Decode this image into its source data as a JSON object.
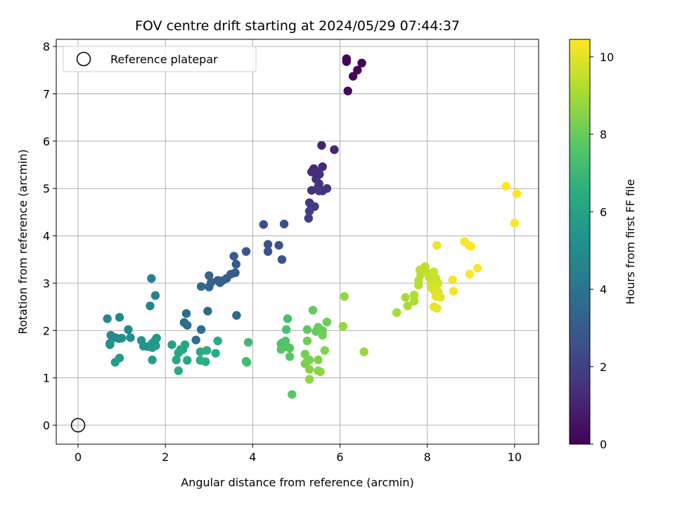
{
  "chart_data": {
    "type": "scatter",
    "title": "FOV centre drift starting at 2024/05/29 07:44:37",
    "xlabel": "Angular distance from reference (arcmin)",
    "ylabel": "Rotation from reference (arcmin)",
    "xlim": [
      -0.5,
      10.55
    ],
    "ylim": [
      -0.4,
      8.15
    ],
    "xticks": [
      0,
      2,
      4,
      6,
      8,
      10
    ],
    "yticks": [
      0,
      1,
      2,
      3,
      4,
      5,
      6,
      7,
      8
    ],
    "grid": true,
    "legend": {
      "position": "top-left",
      "entries": [
        {
          "label": "Reference platepar",
          "marker": "open-circle"
        }
      ]
    },
    "reference_point": {
      "x": 0,
      "y": 0
    },
    "colorbar": {
      "label": "Hours from first FF file",
      "colormap": "viridis",
      "range": [
        0,
        10.45
      ],
      "ticks": [
        0,
        2,
        4,
        6,
        8,
        10
      ]
    },
    "series": [
      {
        "points": [
          [
            6.15,
            7.74,
            0.0
          ],
          [
            6.15,
            7.68,
            0.05
          ],
          [
            6.5,
            7.65,
            0.1
          ],
          [
            6.4,
            7.5,
            0.15
          ],
          [
            6.3,
            7.37,
            0.2
          ],
          [
            6.18,
            7.06,
            0.25
          ],
          [
            5.58,
            5.91,
            1.05
          ],
          [
            5.87,
            5.82,
            1.1
          ],
          [
            5.4,
            5.42,
            1.15
          ],
          [
            5.6,
            5.46,
            1.2
          ],
          [
            5.35,
            5.35,
            1.25
          ],
          [
            5.53,
            5.3,
            1.3
          ],
          [
            5.47,
            5.35,
            1.35
          ],
          [
            5.45,
            5.2,
            1.4
          ],
          [
            5.52,
            5.1,
            1.45
          ],
          [
            5.5,
            5.03,
            1.5
          ],
          [
            5.35,
            4.96,
            1.55
          ],
          [
            5.7,
            5.0,
            1.6
          ],
          [
            5.6,
            4.95,
            1.65
          ],
          [
            5.52,
            4.95,
            1.7
          ],
          [
            5.3,
            4.7,
            1.75
          ],
          [
            5.35,
            4.6,
            1.8
          ],
          [
            5.42,
            4.62,
            1.85
          ],
          [
            5.3,
            4.52,
            1.9
          ],
          [
            5.28,
            4.37,
            1.95
          ],
          [
            4.25,
            4.24,
            2.5
          ],
          [
            4.72,
            4.25,
            2.55
          ],
          [
            4.35,
            3.82,
            2.6
          ],
          [
            4.6,
            3.8,
            2.65
          ],
          [
            4.35,
            3.67,
            2.7
          ],
          [
            4.67,
            3.5,
            2.75
          ],
          [
            3.85,
            3.67,
            2.85
          ],
          [
            3.57,
            3.57,
            2.9
          ],
          [
            3.62,
            3.4,
            2.95
          ],
          [
            3.6,
            3.22,
            3.0
          ],
          [
            3.5,
            3.19,
            3.05
          ],
          [
            3.4,
            3.1,
            3.1
          ],
          [
            3.3,
            3.05,
            3.15
          ],
          [
            3.2,
            3.06,
            3.2
          ],
          [
            3.25,
            3.01,
            3.25
          ],
          [
            3.0,
            3.16,
            3.3
          ],
          [
            3.05,
            3.02,
            3.35
          ],
          [
            3.0,
            2.92,
            3.4
          ],
          [
            2.82,
            2.93,
            3.45
          ],
          [
            3.63,
            2.32,
            3.5
          ],
          [
            2.97,
            2.41,
            3.55
          ],
          [
            2.48,
            2.36,
            3.6
          ],
          [
            2.43,
            2.17,
            3.65
          ],
          [
            2.5,
            2.11,
            3.7
          ],
          [
            2.82,
            2.02,
            3.75
          ],
          [
            2.7,
            1.8,
            3.8
          ],
          [
            1.68,
            3.1,
            4.6
          ],
          [
            1.77,
            2.74,
            4.65
          ],
          [
            1.65,
            2.52,
            4.7
          ],
          [
            0.67,
            2.25,
            4.8
          ],
          [
            0.95,
            2.28,
            4.85
          ],
          [
            1.15,
            2.02,
            4.9
          ],
          [
            0.75,
            1.9,
            4.95
          ],
          [
            0.85,
            1.85,
            5.0
          ],
          [
            0.93,
            1.83,
            5.05
          ],
          [
            1.0,
            1.84,
            5.1
          ],
          [
            1.2,
            1.85,
            5.15
          ],
          [
            0.73,
            1.73,
            5.2
          ],
          [
            0.73,
            1.7,
            5.25
          ],
          [
            1.45,
            1.79,
            5.3
          ],
          [
            1.5,
            1.67,
            5.35
          ],
          [
            1.6,
            1.66,
            5.4
          ],
          [
            1.7,
            1.73,
            5.45
          ],
          [
            1.77,
            1.8,
            5.5
          ],
          [
            1.8,
            1.84,
            5.55
          ],
          [
            1.7,
            1.64,
            5.6
          ],
          [
            1.78,
            1.68,
            5.65
          ],
          [
            0.95,
            1.42,
            5.7
          ],
          [
            0.85,
            1.33,
            5.75
          ],
          [
            1.7,
            1.38,
            5.8
          ],
          [
            2.15,
            1.7,
            6.0
          ],
          [
            2.35,
            1.6,
            6.05
          ],
          [
            2.45,
            1.7,
            6.1
          ],
          [
            2.4,
            1.6,
            6.15
          ],
          [
            2.3,
            1.53,
            6.2
          ],
          [
            2.25,
            1.38,
            6.25
          ],
          [
            2.5,
            1.37,
            6.3
          ],
          [
            2.3,
            1.15,
            6.35
          ],
          [
            2.8,
            1.55,
            6.4
          ],
          [
            2.95,
            1.58,
            6.45
          ],
          [
            3.15,
            1.52,
            6.5
          ],
          [
            3.2,
            1.78,
            6.55
          ],
          [
            2.8,
            1.37,
            6.6
          ],
          [
            2.92,
            1.34,
            6.65
          ],
          [
            3.9,
            1.75,
            7.1
          ],
          [
            3.85,
            1.35,
            7.15
          ],
          [
            3.87,
            1.33,
            7.2
          ],
          [
            4.8,
            2.25,
            7.3
          ],
          [
            4.77,
            2.02,
            7.35
          ],
          [
            4.7,
            1.75,
            7.4
          ],
          [
            4.65,
            1.72,
            7.45
          ],
          [
            4.75,
            1.78,
            7.5
          ],
          [
            4.8,
            1.65,
            7.55
          ],
          [
            4.85,
            1.63,
            7.6
          ],
          [
            4.65,
            1.6,
            7.65
          ],
          [
            4.85,
            1.45,
            7.7
          ],
          [
            4.9,
            0.65,
            7.75
          ],
          [
            5.25,
            2.02,
            7.8
          ],
          [
            5.38,
            2.43,
            7.85
          ],
          [
            5.45,
            1.98,
            7.9
          ],
          [
            5.5,
            2.07,
            7.95
          ],
          [
            5.6,
            2.0,
            8.0
          ],
          [
            5.7,
            2.18,
            8.05
          ],
          [
            5.25,
            1.78,
            8.1
          ],
          [
            5.6,
            1.9,
            8.15
          ],
          [
            5.2,
            1.5,
            8.2
          ],
          [
            5.3,
            1.38,
            8.25
          ],
          [
            5.2,
            1.3,
            8.3
          ],
          [
            5.25,
            1.35,
            8.35
          ],
          [
            5.5,
            1.38,
            8.4
          ],
          [
            5.65,
            1.58,
            8.45
          ],
          [
            5.3,
            1.18,
            8.5
          ],
          [
            5.5,
            1.15,
            8.55
          ],
          [
            5.55,
            1.13,
            8.6
          ],
          [
            5.3,
            0.97,
            8.65
          ],
          [
            6.1,
            2.72,
            8.7
          ],
          [
            6.07,
            2.09,
            8.75
          ],
          [
            6.55,
            1.55,
            8.8
          ],
          [
            7.3,
            2.38,
            9.0
          ],
          [
            7.5,
            2.7,
            9.05
          ],
          [
            7.55,
            2.52,
            9.1
          ],
          [
            7.7,
            2.62,
            9.15
          ],
          [
            7.7,
            2.75,
            9.2
          ],
          [
            7.8,
            2.96,
            9.25
          ],
          [
            7.8,
            3.05,
            9.3
          ],
          [
            7.85,
            3.18,
            9.35
          ],
          [
            7.83,
            3.28,
            9.4
          ],
          [
            7.95,
            3.35,
            9.45
          ],
          [
            8.0,
            3.22,
            9.5
          ],
          [
            8.05,
            3.12,
            9.55
          ],
          [
            8.1,
            3.0,
            9.6
          ],
          [
            8.15,
            3.24,
            9.65
          ],
          [
            8.2,
            3.1,
            9.7
          ],
          [
            8.2,
            2.95,
            9.75
          ],
          [
            8.25,
            3.0,
            9.8
          ],
          [
            8.1,
            2.9,
            9.85
          ],
          [
            8.15,
            2.85,
            9.9
          ],
          [
            8.25,
            2.82,
            9.95
          ],
          [
            8.2,
            2.72,
            10.0
          ],
          [
            8.3,
            2.7,
            10.05
          ],
          [
            8.15,
            2.5,
            10.1
          ],
          [
            8.22,
            2.47,
            10.15
          ],
          [
            8.22,
            3.8,
            10.2
          ],
          [
            8.58,
            3.07,
            10.25
          ],
          [
            8.6,
            2.83,
            10.3
          ],
          [
            8.85,
            3.88,
            10.35
          ],
          [
            8.95,
            3.8,
            10.4
          ],
          [
            9.0,
            3.78,
            10.42
          ],
          [
            9.15,
            3.32,
            10.44
          ],
          [
            8.97,
            3.19,
            10.45
          ],
          [
            9.8,
            5.05,
            10.45
          ],
          [
            10.05,
            4.89,
            10.45
          ],
          [
            10.0,
            4.27,
            10.45
          ]
        ]
      }
    ]
  }
}
